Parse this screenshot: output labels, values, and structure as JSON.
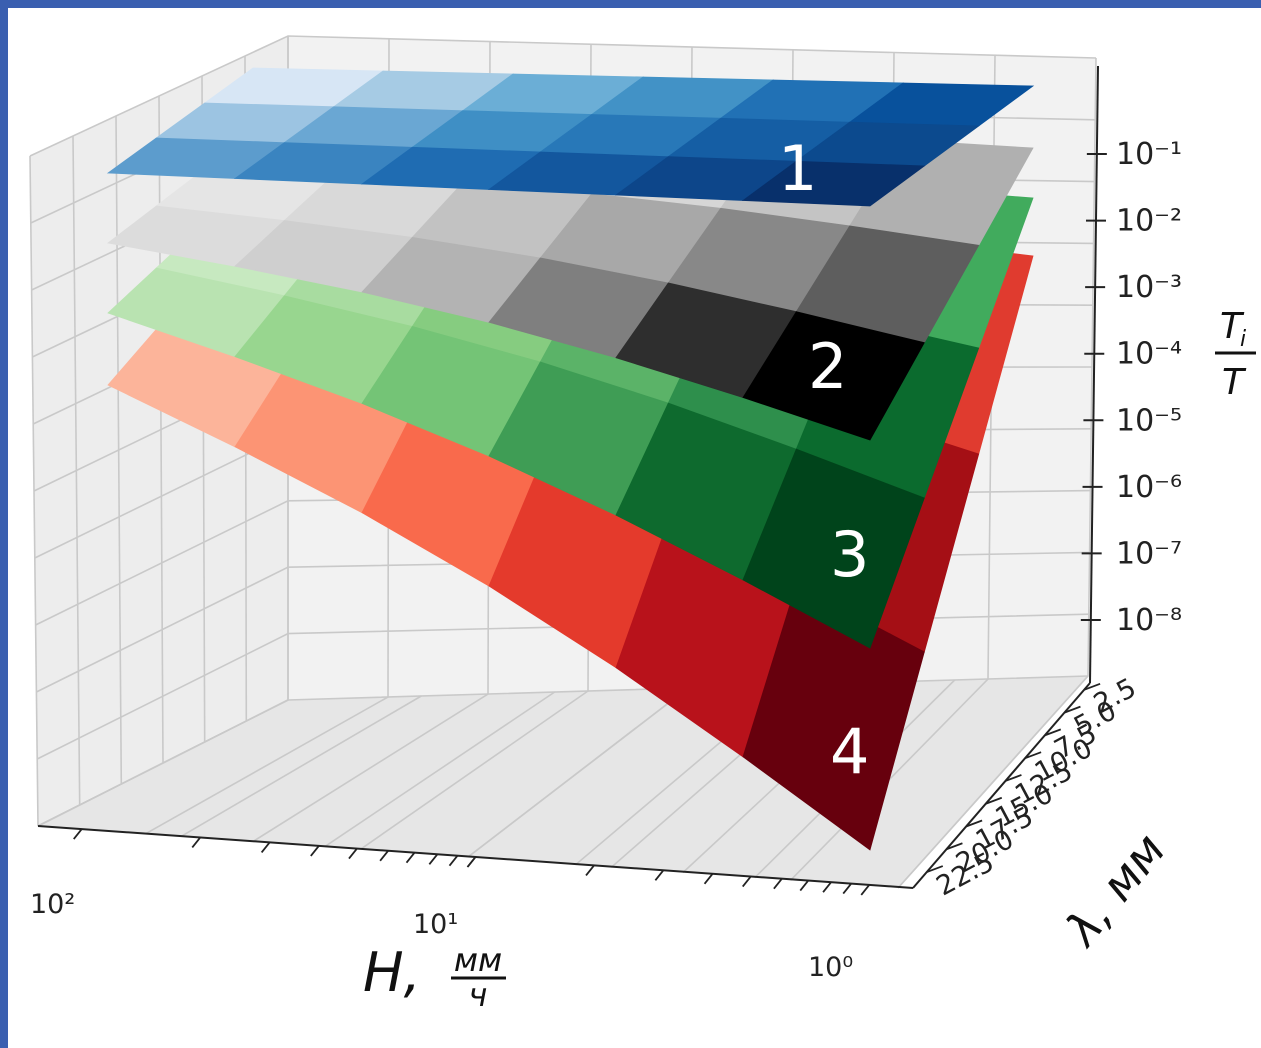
{
  "chart_data": {
    "type": "surface",
    "x_axis": {
      "label": "H,",
      "unit_numerator": "мм",
      "unit_denominator": "ч",
      "scale": "log",
      "ticks": [
        {
          "value": 100,
          "label": "10²"
        },
        {
          "value": 10,
          "label": "10¹"
        },
        {
          "value": 1,
          "label": "10⁰"
        }
      ]
    },
    "y_axis": {
      "label": "λ, мм",
      "ticks": [
        "2.5",
        "5.0",
        "7.5",
        "10.0",
        "12.5",
        "15.0",
        "17.5",
        "20.0",
        "22.5"
      ]
    },
    "z_axis": {
      "label_numerator": "T",
      "label_subscript": "i",
      "label_denominator": "T",
      "scale": "log",
      "ticks": [
        "10⁻¹",
        "10⁻²",
        "10⁻³",
        "10⁻⁴",
        "10⁻⁵",
        "10⁻⁶",
        "10⁻⁷",
        "10⁻⁸"
      ]
    },
    "series": [
      {
        "name": "1",
        "colormap": "Blues"
      },
      {
        "name": "2",
        "colormap": "Greys"
      },
      {
        "name": "3",
        "colormap": "Greens"
      },
      {
        "name": "4",
        "colormap": "Reds"
      }
    ],
    "grid": true
  }
}
